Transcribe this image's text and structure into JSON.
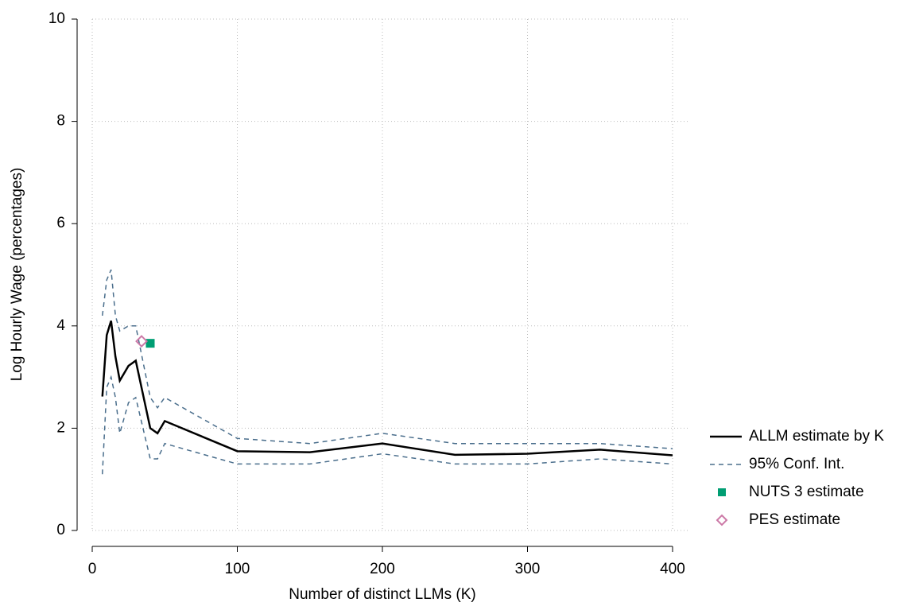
{
  "chart_data": {
    "type": "line",
    "xlabel": "Number of distinct LLMs (K)",
    "ylabel": "Log Hourly Wage (percentages)",
    "x": [
      7,
      10,
      13,
      16,
      19,
      25,
      30,
      40,
      45,
      50,
      100,
      150,
      200,
      250,
      300,
      350,
      400
    ],
    "series": [
      {
        "name": "ALLM estimate by K",
        "color": "#000000",
        "style": "solid",
        "values": [
          2.62,
          3.82,
          4.1,
          3.4,
          2.93,
          3.22,
          3.32,
          2.0,
          1.9,
          2.14,
          1.55,
          1.53,
          1.7,
          1.48,
          1.5,
          1.58,
          1.47
        ]
      },
      {
        "name": "95% Conf. Int.",
        "color": "#4a6e8c",
        "style": "dashed",
        "upper": [
          4.2,
          4.9,
          5.1,
          4.2,
          3.9,
          4.0,
          4.0,
          2.6,
          2.4,
          2.6,
          1.8,
          1.7,
          1.9,
          1.7,
          1.7,
          1.7,
          1.6
        ],
        "lower": [
          1.1,
          2.8,
          3.0,
          2.6,
          1.9,
          2.5,
          2.6,
          1.4,
          1.4,
          1.7,
          1.3,
          1.3,
          1.5,
          1.3,
          1.3,
          1.4,
          1.3
        ]
      }
    ],
    "points": [
      {
        "name": "NUTS 3 estimate",
        "x": 40,
        "y": 3.66,
        "color": "#009e73",
        "marker": "square"
      },
      {
        "name": "PES estimate",
        "x": 34,
        "y": 3.7,
        "color": "#cc79a7",
        "marker": "diamond"
      }
    ],
    "xlim": [
      0,
      400
    ],
    "xticks": [
      0,
      100,
      200,
      300,
      400
    ],
    "ylim": [
      0,
      10
    ],
    "yticks": [
      0,
      2,
      4,
      6,
      8,
      10
    ],
    "grid": true,
    "legend": "right"
  }
}
